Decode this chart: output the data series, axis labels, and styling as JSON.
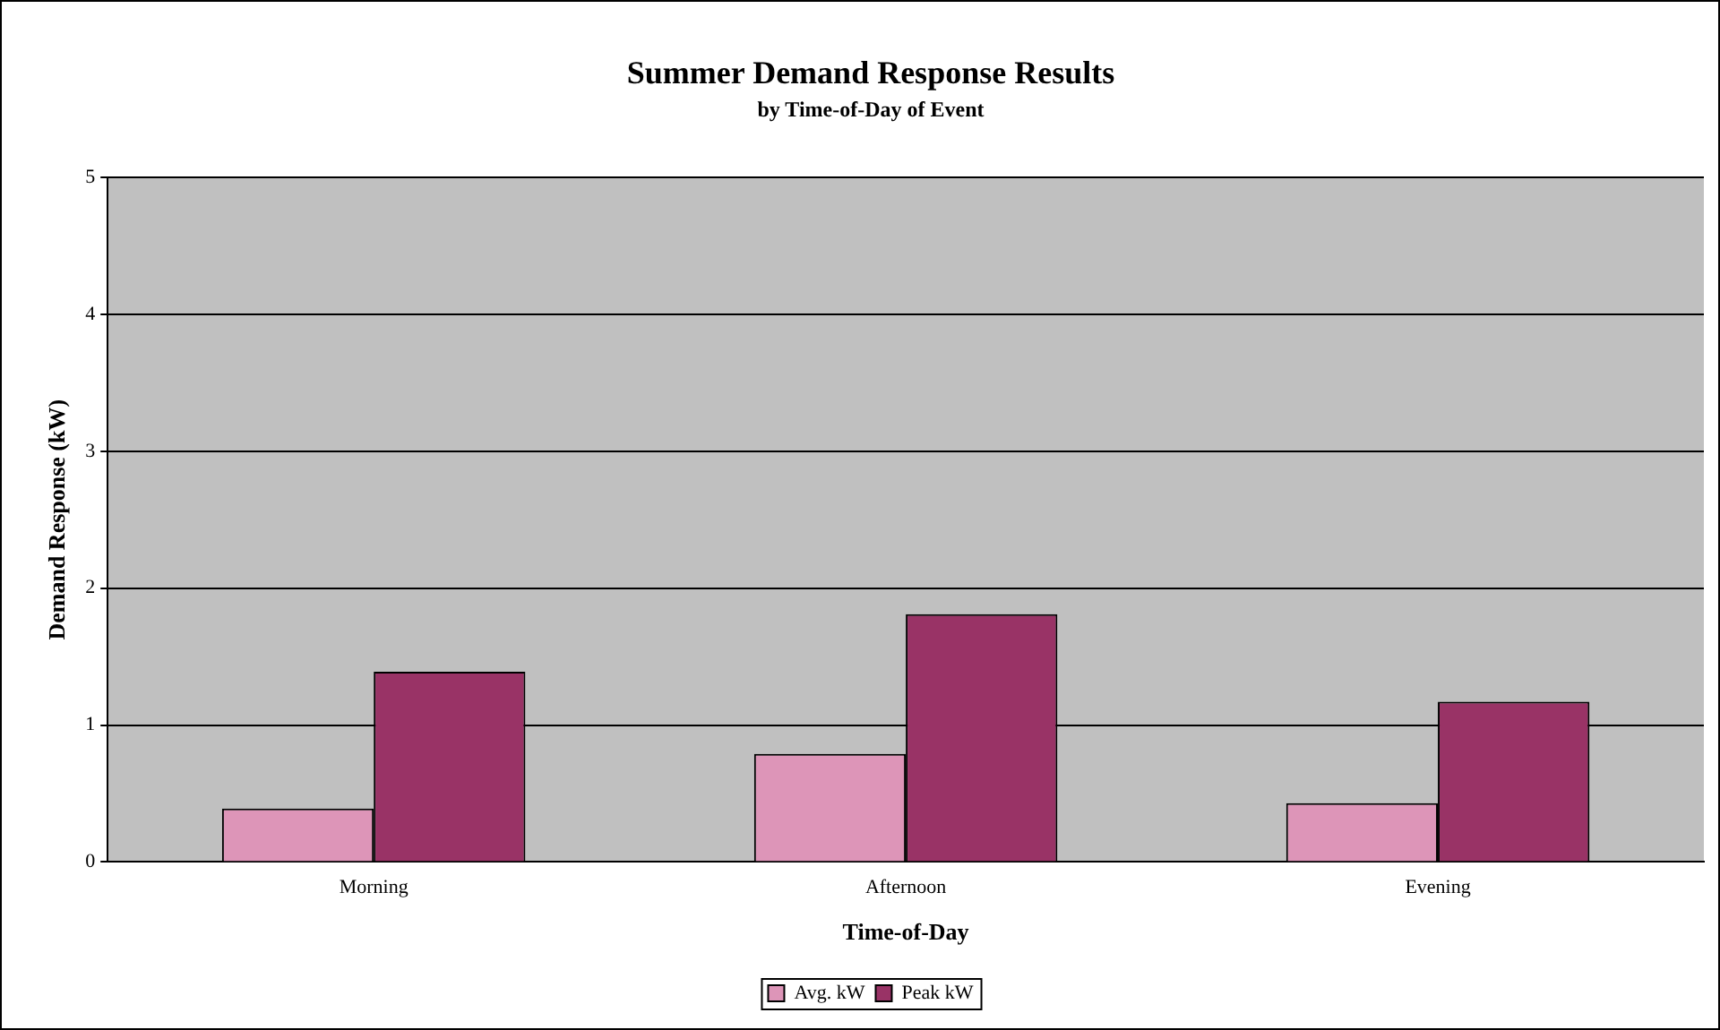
{
  "chart_data": {
    "type": "bar",
    "title": "Summer Demand Response Results",
    "subtitle": "by Time-of-Day of Event",
    "xlabel": "Time-of-Day",
    "ylabel": "Demand Response (kW)",
    "categories": [
      "Morning",
      "Afternoon",
      "Evening"
    ],
    "series": [
      {
        "name": "Avg. kW",
        "color": "#dd95b8",
        "values": [
          0.39,
          0.79,
          0.43
        ]
      },
      {
        "name": "Peak kW",
        "color": "#993366",
        "values": [
          1.39,
          1.81,
          1.17
        ]
      }
    ],
    "ylim": [
      0,
      5
    ],
    "yticks": [
      0,
      1,
      2,
      3,
      4,
      5
    ],
    "grid": "y",
    "legend": "bottom"
  }
}
